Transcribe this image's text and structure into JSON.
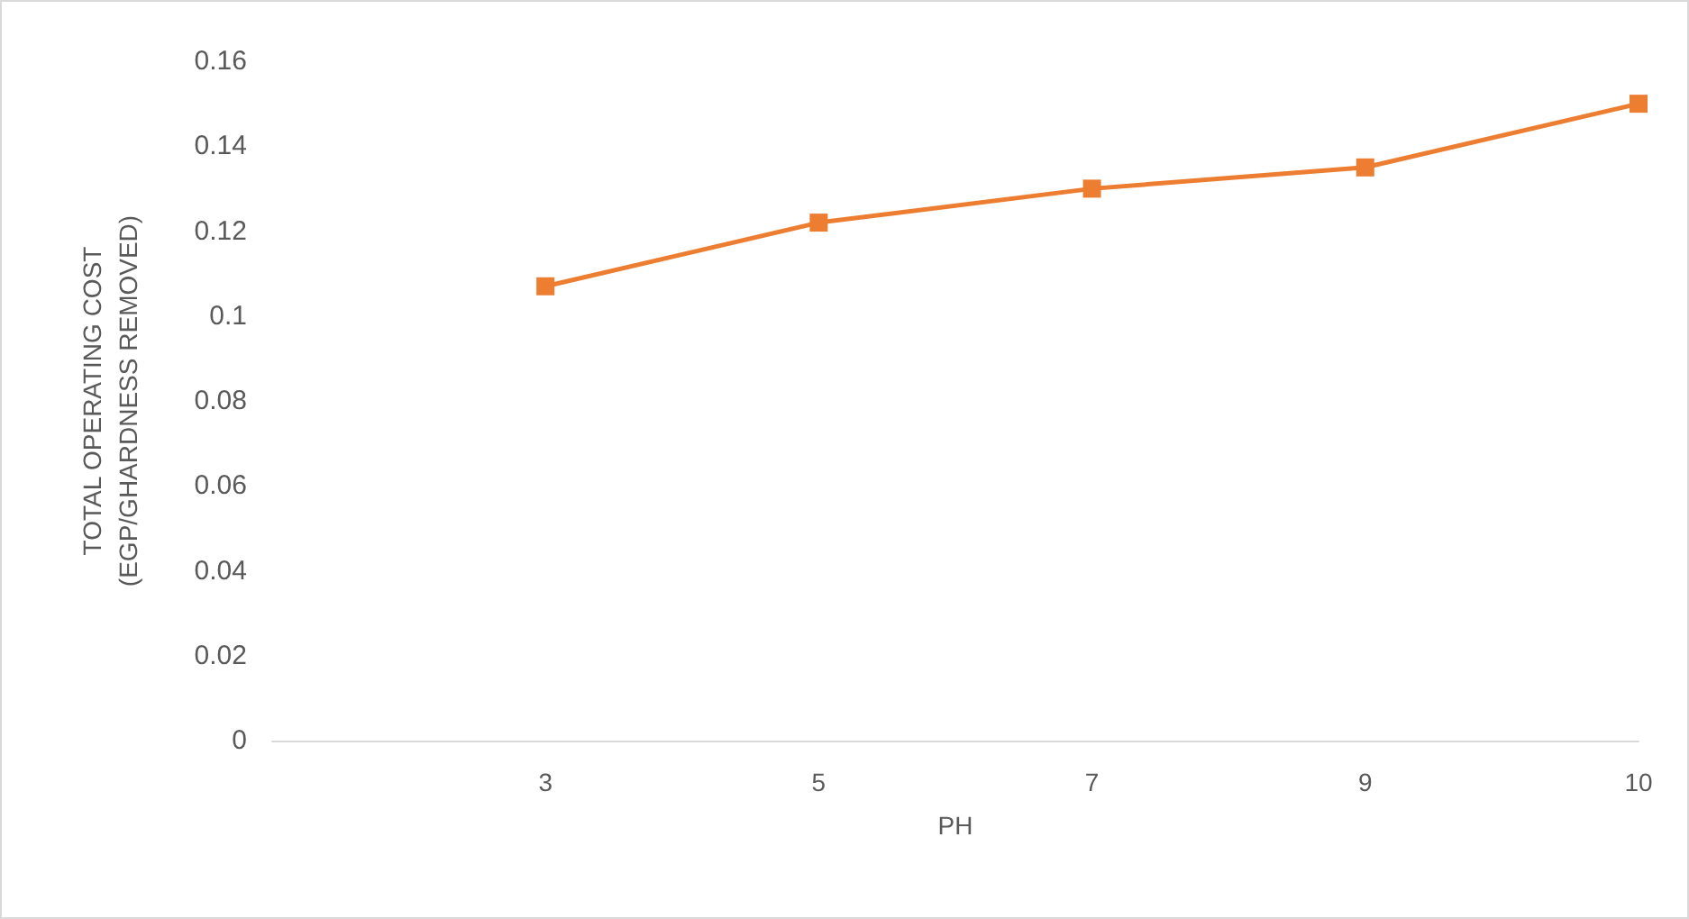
{
  "chart_data": {
    "type": "line",
    "xlabel": "PH",
    "ylabel": "TOTAL OPERATING COST\n(EGP/GHARDNESS REMOVED)",
    "categories": [
      null,
      "3",
      "5",
      "7",
      "9",
      "10"
    ],
    "series": [
      {
        "color": "#ed7d31",
        "values": [
          null,
          0.107,
          0.122,
          0.13,
          0.135,
          0.15
        ]
      }
    ],
    "ylim": [
      0,
      0.16
    ],
    "yticks": [
      0,
      0.02,
      0.04,
      0.06,
      0.08,
      0.1,
      0.12,
      0.14,
      0.16
    ],
    "grid": false,
    "marker": "square",
    "line_style": "solid"
  }
}
